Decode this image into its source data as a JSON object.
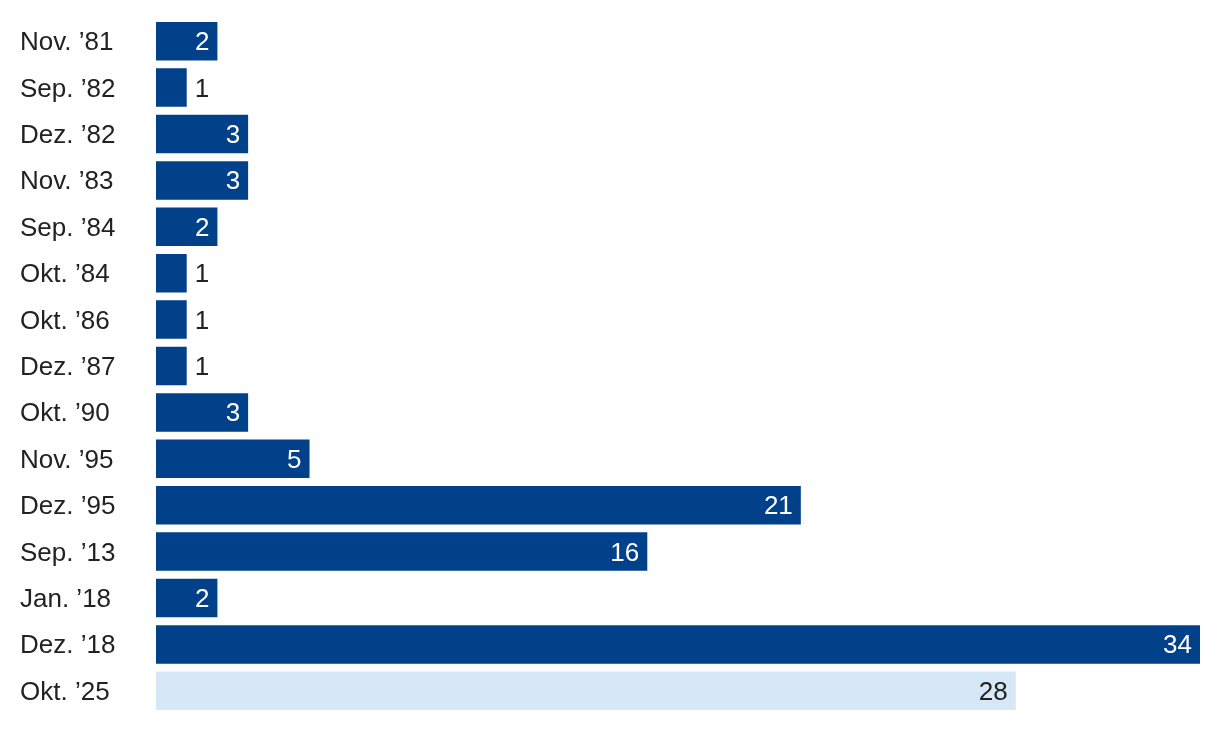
{
  "chart_data": {
    "type": "bar",
    "orientation": "horizontal",
    "data_labels": true,
    "categories": [
      "Nov. ’81",
      "Sep. ’82",
      "Dez. ’82",
      "Nov. ’83",
      "Sep. ’84",
      "Okt. ’84",
      "Okt. ’86",
      "Dez. ’87",
      "Okt. ’90",
      "Nov. ’95",
      "Dez. ’95",
      "Sep. ’13",
      "Jan. ’18",
      "Dez. ’18",
      "Okt. ’25"
    ],
    "values": [
      2,
      1,
      3,
      3,
      2,
      1,
      1,
      1,
      3,
      5,
      21,
      16,
      2,
      34,
      28
    ],
    "colors": [
      "#00418a",
      "#00418a",
      "#00418a",
      "#00418a",
      "#00418a",
      "#00418a",
      "#00418a",
      "#00418a",
      "#00418a",
      "#00418a",
      "#00418a",
      "#00418a",
      "#00418a",
      "#00418a",
      "#d6e7f7"
    ]
  }
}
